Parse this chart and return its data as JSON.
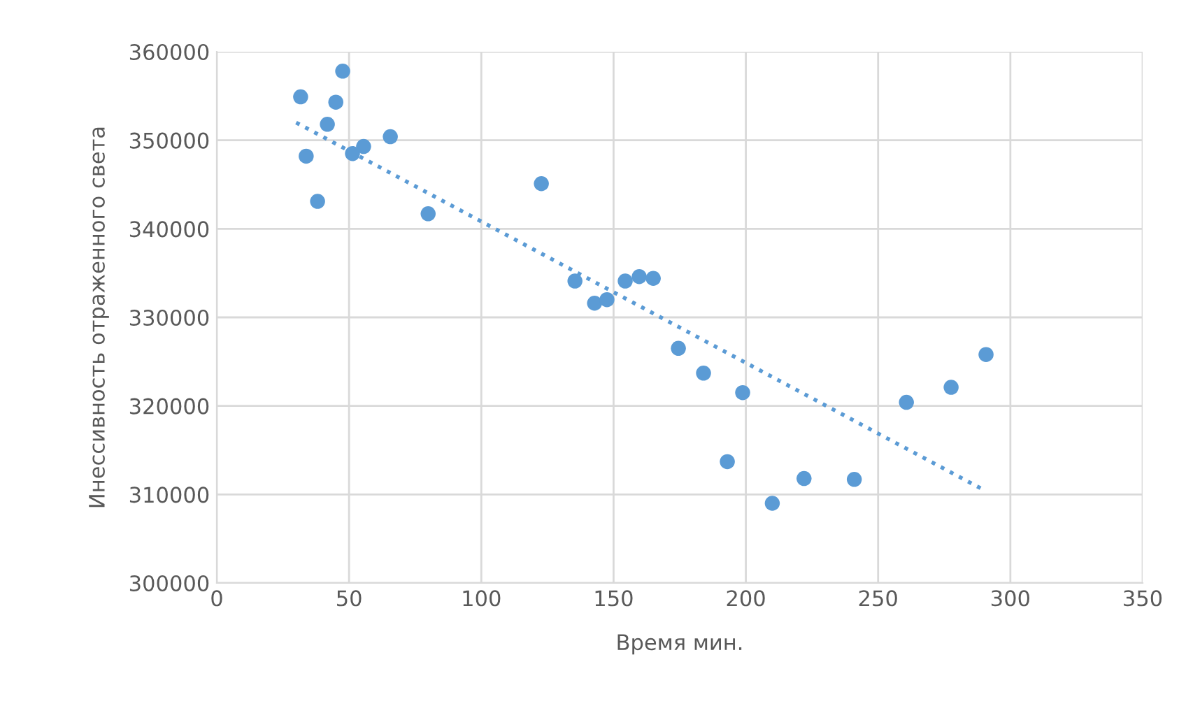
{
  "chart_data": {
    "type": "scatter",
    "xlabel": "Время мин.",
    "ylabel": "Инессивность отраженного света",
    "xlim": [
      0,
      350
    ],
    "xticks": [
      0,
      50,
      100,
      150,
      200,
      250,
      300,
      350
    ],
    "ylim": [
      300000,
      360000
    ],
    "yticks": [
      300000,
      310000,
      320000,
      330000,
      340000,
      350000,
      360000
    ],
    "grid": true,
    "series": [
      {
        "marker": "circle",
        "color": "#5b9bd5",
        "x": [
          31.7,
          33.8,
          38.1,
          41.8,
          45,
          47.6,
          51.3,
          55.5,
          65.6,
          79.9,
          122.7,
          135.4,
          142.8,
          147.5,
          154.4,
          159.7,
          165,
          174.5,
          184,
          193,
          198.8,
          210,
          222,
          241,
          260.7,
          277.6,
          290.8
        ],
        "values": [
          354900,
          348200,
          343100,
          351800,
          354300,
          357800,
          348500,
          349300,
          350400,
          341700,
          345100,
          334100,
          331600,
          332000,
          334100,
          334600,
          334400,
          326500,
          323700,
          313700,
          321500,
          309000,
          311800,
          311700,
          320400,
          322100,
          325800
        ]
      },
      {
        "type": "line",
        "line_style": "dotted",
        "color": "#5b9bd5",
        "x": [
          30,
          290
        ],
        "values": [
          352000,
          310500
        ]
      }
    ]
  }
}
